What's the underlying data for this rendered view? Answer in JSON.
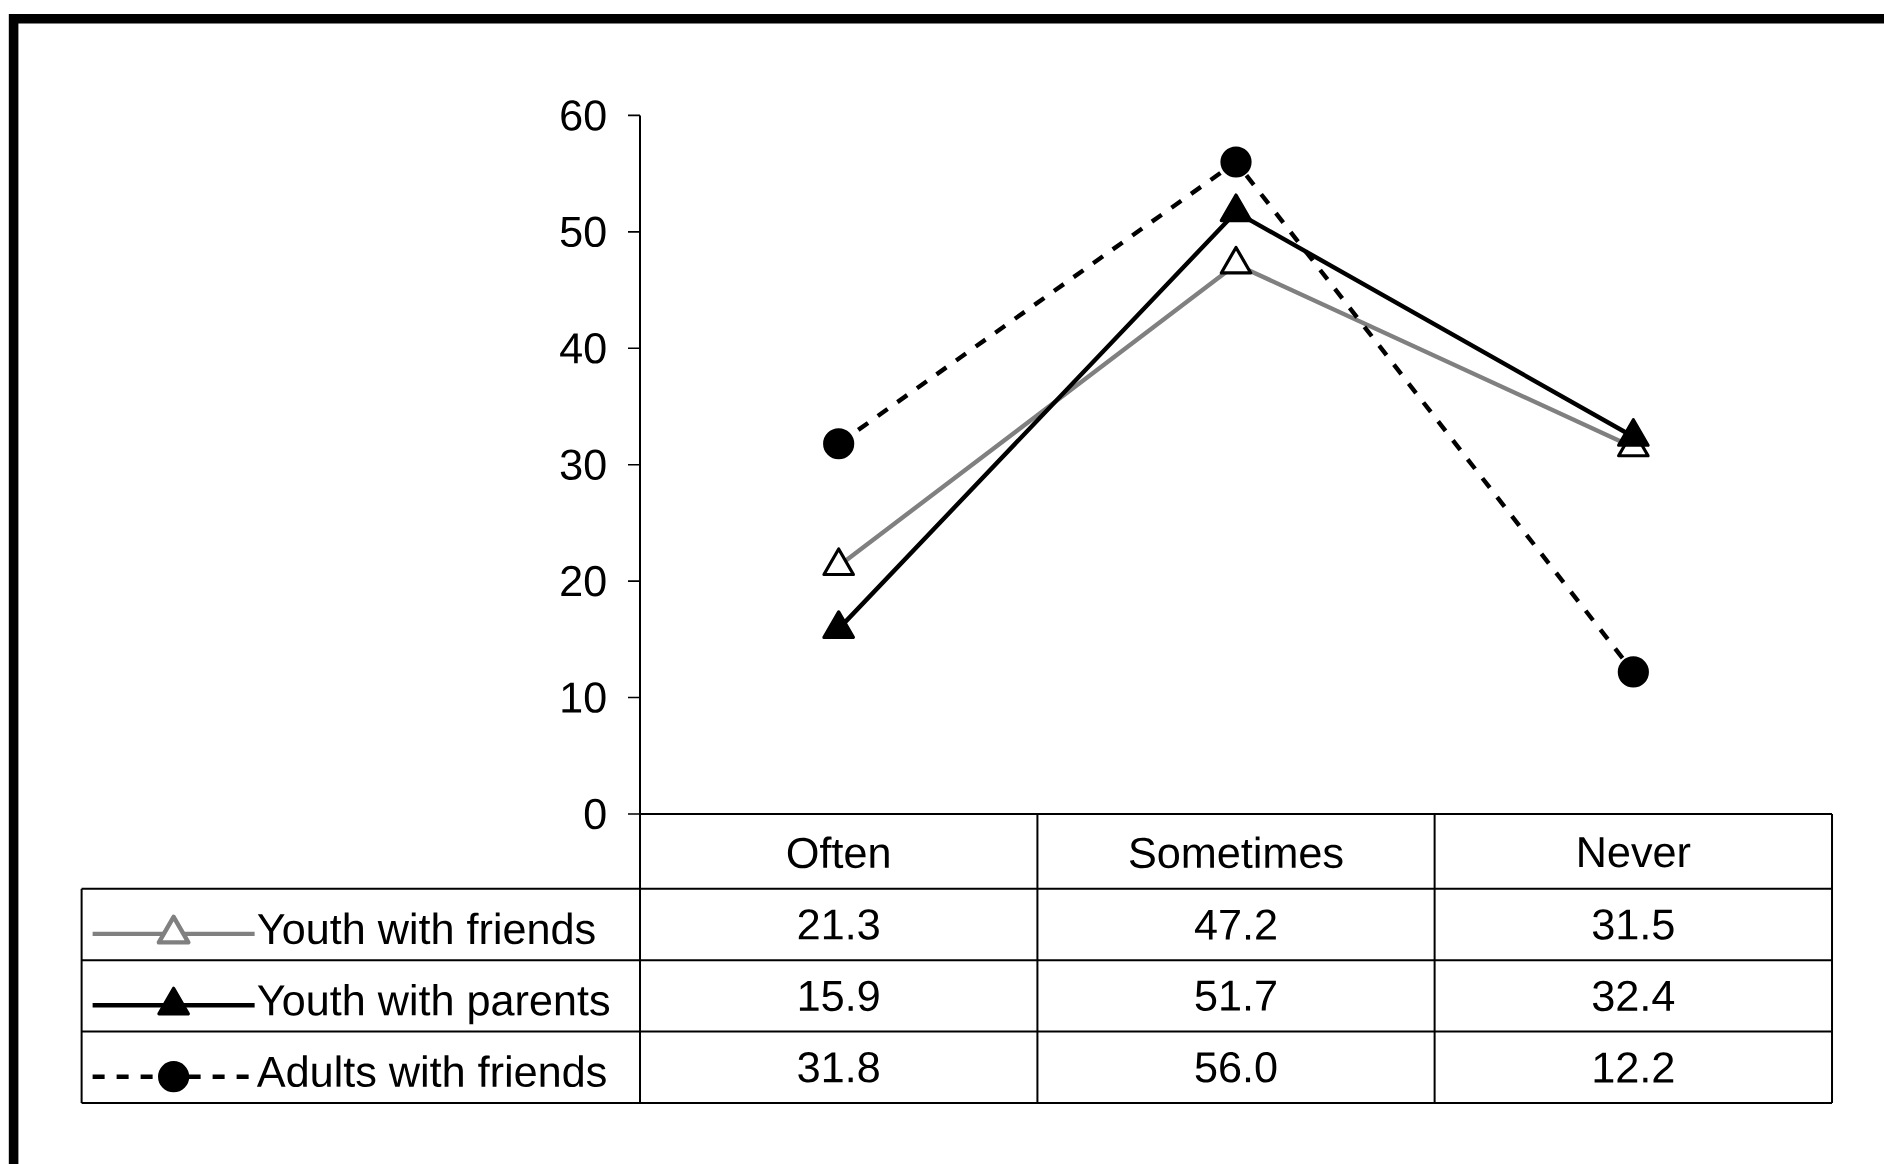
{
  "chart_data": {
    "type": "line",
    "categories": [
      "Often",
      "Sometimes",
      "Never"
    ],
    "series": [
      {
        "name": "Youth with friends",
        "color": "#808080",
        "colors": [
          "#ffffff",
          "#ffffff",
          "#ffffff"
        ],
        "values": [
          21.3,
          47.2,
          31.5
        ],
        "value_labels": [
          "21.3",
          "47.2",
          "31.5"
        ],
        "marker": "triangle",
        "line_style": "solid"
      },
      {
        "name": "Youth with parents",
        "color": "#000000",
        "values": [
          15.9,
          51.7,
          32.4
        ],
        "value_labels": [
          "15.9",
          "51.7",
          "32.4"
        ],
        "marker": "triangle",
        "line_style": "solid"
      },
      {
        "name": "Adults with friends",
        "color": "#000000",
        "values": [
          31.8,
          56.0,
          12.2
        ],
        "value_labels": [
          "31.8",
          "56.0",
          "12.2"
        ],
        "marker": "circle",
        "line_style": "dashed"
      }
    ],
    "ylim": [
      0,
      60
    ],
    "yticks": [
      0,
      10,
      20,
      30,
      40,
      50,
      60
    ],
    "legend": "bottom left"
  }
}
